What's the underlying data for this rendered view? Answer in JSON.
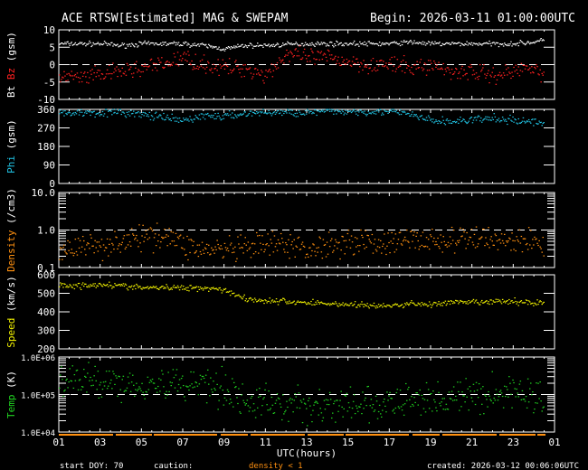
{
  "chart_data": [
    {
      "type": "scatter",
      "id": "mag",
      "ylabel_parts": [
        {
          "text": "Bt",
          "color": "#ffffff"
        },
        {
          "text": " Bz",
          "color": "#ff2020"
        },
        {
          "text": "  (gsm)",
          "color": "#ffffff"
        }
      ],
      "ylim": [
        -10,
        10
      ],
      "scale": "linear",
      "yticks": [
        10,
        5,
        0,
        -5,
        -10
      ],
      "ytick_labels": [
        "10",
        "5",
        "0",
        "-5",
        "-10"
      ],
      "dashed_ref": 0,
      "series": [
        {
          "name": "Bt",
          "color": "#ffffff",
          "x_hours": [
            0,
            1,
            2,
            3,
            4,
            5,
            6,
            7,
            8,
            9,
            10,
            11,
            12,
            13,
            14,
            15,
            16,
            17,
            18,
            19,
            20,
            21,
            22,
            23,
            23.5
          ],
          "values": [
            6,
            6,
            6,
            5.5,
            6,
            6,
            6,
            5.5,
            4.5,
            5.5,
            5.5,
            5.8,
            6,
            6,
            6,
            6,
            6,
            6.5,
            6,
            6,
            6,
            6,
            6,
            6.5,
            7
          ],
          "spread": 0.5
        },
        {
          "name": "Bz",
          "color": "#ff2020",
          "x_hours": [
            0,
            1,
            2,
            3,
            4,
            5,
            6,
            7,
            8,
            9,
            10,
            11,
            12,
            13,
            14,
            15,
            16,
            17,
            18,
            19,
            20,
            21,
            22,
            23,
            23.5
          ],
          "values": [
            -3,
            -4,
            -3,
            -2,
            -1,
            0,
            2,
            0,
            -1,
            -1,
            -3,
            3,
            2,
            2,
            1,
            0,
            0,
            -1,
            0,
            -2,
            -2,
            -3,
            -2,
            0,
            -4
          ],
          "spread": 1.8
        }
      ]
    },
    {
      "type": "scatter",
      "id": "phi",
      "ylabel_parts": [
        {
          "text": "Phi",
          "color": "#20c0e0"
        },
        {
          "text": "  (gsm)",
          "color": "#ffffff"
        }
      ],
      "ylim": [
        0,
        360
      ],
      "scale": "linear",
      "yticks": [
        360,
        270,
        180,
        90,
        0
      ],
      "ytick_labels": [
        "360",
        "270",
        "180",
        "90",
        "0"
      ],
      "series": [
        {
          "name": "Phi",
          "color": "#20c0e0",
          "x_hours": [
            0,
            1,
            2,
            3,
            4,
            5,
            6,
            7,
            8,
            9,
            10,
            11,
            12,
            13,
            14,
            15,
            16,
            17,
            18,
            19,
            20,
            21,
            22,
            23,
            23.5
          ],
          "values": [
            340,
            345,
            345,
            345,
            335,
            320,
            305,
            330,
            325,
            340,
            345,
            345,
            345,
            350,
            350,
            350,
            350,
            335,
            305,
            300,
            310,
            315,
            305,
            300,
            290
          ],
          "spread": 14
        }
      ]
    },
    {
      "type": "scatter",
      "id": "density",
      "ylabel_parts": [
        {
          "text": "Density",
          "color": "#ff9010"
        },
        {
          "text": "  (/cm3)",
          "color": "#ffffff"
        }
      ],
      "ylim": [
        0.1,
        10
      ],
      "scale": "log",
      "yticks": [
        10,
        1,
        0.1
      ],
      "ytick_labels": [
        "10.0",
        "1.0",
        "0.1"
      ],
      "dashed_ref": 1,
      "series": [
        {
          "name": "Density",
          "color": "#ff9010",
          "x_hours": [
            0,
            1,
            2,
            3,
            4,
            5,
            6,
            7,
            8,
            9,
            10,
            11,
            12,
            13,
            14,
            15,
            16,
            17,
            18,
            19,
            20,
            21,
            22,
            23,
            23.5
          ],
          "values": [
            0.3,
            0.35,
            0.4,
            0.5,
            0.6,
            0.8,
            0.4,
            0.3,
            0.3,
            0.3,
            0.4,
            0.4,
            0.3,
            0.4,
            0.5,
            0.5,
            0.4,
            0.6,
            0.5,
            0.5,
            0.6,
            0.6,
            0.5,
            0.5,
            0.4
          ],
          "spread": 0.25
        }
      ]
    },
    {
      "type": "scatter",
      "id": "speed",
      "ylabel_parts": [
        {
          "text": "Speed",
          "color": "#f0f000"
        },
        {
          "text": "  (km/s)",
          "color": "#ffffff"
        }
      ],
      "ylim": [
        200,
        600
      ],
      "scale": "linear",
      "yticks": [
        600,
        500,
        400,
        300,
        200
      ],
      "ytick_labels": [
        "600",
        "500",
        "400",
        "300",
        "200"
      ],
      "series": [
        {
          "name": "Speed",
          "color": "#f0f000",
          "x_hours": [
            0,
            1,
            2,
            3,
            4,
            5,
            6,
            7,
            8,
            9,
            10,
            11,
            12,
            13,
            14,
            15,
            16,
            17,
            18,
            19,
            20,
            21,
            22,
            23,
            23.5
          ],
          "values": [
            545,
            540,
            550,
            540,
            530,
            530,
            530,
            530,
            520,
            470,
            460,
            455,
            450,
            445,
            440,
            435,
            430,
            445,
            440,
            450,
            450,
            455,
            455,
            450,
            450
          ],
          "spread": 12
        }
      ]
    },
    {
      "type": "scatter",
      "id": "temp",
      "ylabel_parts": [
        {
          "text": "Temp",
          "color": "#20d020"
        },
        {
          "text": "  (K)",
          "color": "#ffffff"
        }
      ],
      "ylim": [
        10000,
        1000000
      ],
      "scale": "log",
      "yticks": [
        1000000,
        100000,
        10000
      ],
      "ytick_labels": [
        "1.0E+06",
        "1.0E+05",
        "1.0E+04"
      ],
      "dashed_ref": 100000,
      "series": [
        {
          "name": "Temp",
          "color": "#20d020",
          "x_hours": [
            0,
            1,
            2,
            3,
            4,
            5,
            6,
            7,
            8,
            9,
            10,
            11,
            12,
            13,
            14,
            15,
            16,
            17,
            18,
            19,
            20,
            21,
            22,
            23,
            23.5
          ],
          "values": [
            250000,
            220000,
            250000,
            200000,
            200000,
            180000,
            200000,
            220000,
            150000,
            60000,
            60000,
            55000,
            50000,
            50000,
            50000,
            50000,
            50000,
            70000,
            80000,
            80000,
            90000,
            100000,
            120000,
            100000,
            80000
          ],
          "spread": 0.35
        }
      ]
    }
  ],
  "header": {
    "title": "ACE RTSW[Estimated] MAG & SWEPAM",
    "begin": "Begin: 2026-03-11 01:00:00UTC"
  },
  "xaxis": {
    "tick_labels": [
      "01",
      "03",
      "05",
      "07",
      "09",
      "11",
      "13",
      "15",
      "17",
      "19",
      "21",
      "23",
      "01"
    ],
    "label": "UTC(hours)",
    "range_hours": [
      0,
      24
    ]
  },
  "footer": {
    "start_doy": "start DOY:  70",
    "caution": "caution:",
    "density_note": "density < 1",
    "created": "created: 2026-03-12 00:06:06UTC"
  },
  "colors": {
    "background": "#000000",
    "axes": "#ffffff",
    "caution": "#ff9010"
  }
}
